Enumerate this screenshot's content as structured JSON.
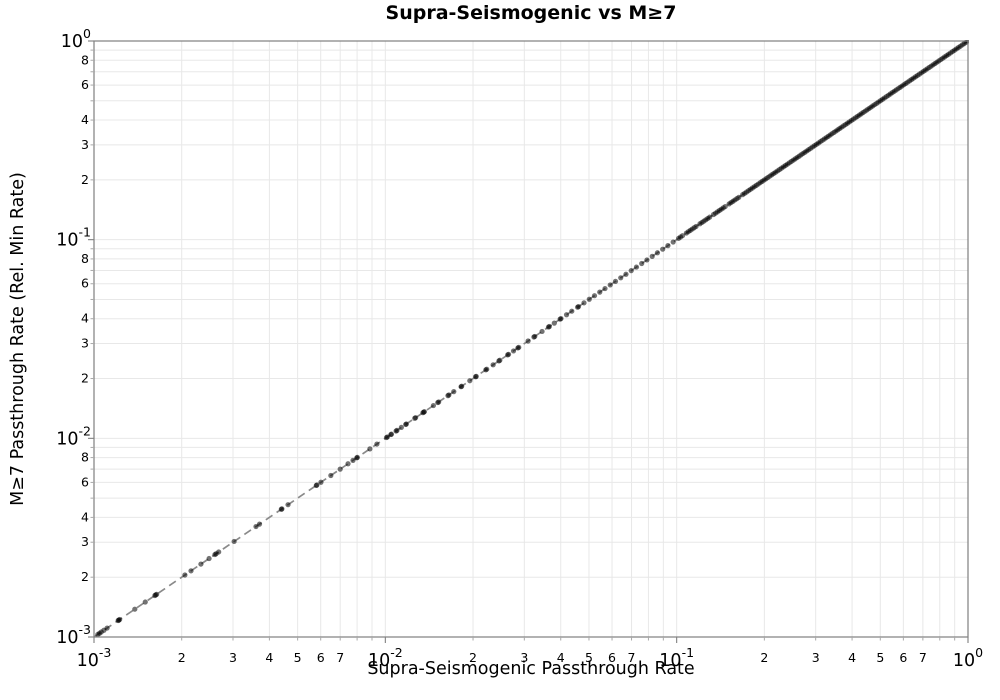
{
  "chart_data": {
    "type": "scatter",
    "title": "Supra-Seismogenic vs M≥7",
    "xlabel": "Supra-Seismogenic Passthrough Rate",
    "ylabel": "M≥7 Passthrough Rate (Rel. Min Rate)",
    "xscale": "log",
    "yscale": "log",
    "xlim": [
      0.001,
      1.0
    ],
    "ylim": [
      0.001,
      1.0
    ],
    "grid": true,
    "legend": "none",
    "x_major_tick_exponents": [
      -3,
      -2,
      -1,
      0
    ],
    "y_major_tick_exponents": [
      0,
      -1,
      -2,
      -3
    ],
    "major_tick_base": "10",
    "x_minor_tick_labels": [
      "2",
      "3",
      "4",
      "5",
      "6",
      "7"
    ],
    "y_minor_tick_labels": [
      "2",
      "3",
      "4",
      "6",
      "8"
    ],
    "reference_line": {
      "equation": "y = x",
      "style": "dashed",
      "color": "#8a8a8a"
    },
    "marker": {
      "shape": "circle",
      "color": "#000000",
      "opacity": 0.55,
      "radius": 2.6
    },
    "colors": {
      "grid": "#e8e8e8",
      "spine": "#7f7f7f",
      "text": "#000000",
      "background": "#ffffff"
    },
    "series": [
      {
        "name": "passthrough-rates",
        "points_note": "Every point lies on the identity line (y = x). Values listed as log10 of the passthrough rate.",
        "log10_rate": [
          -2.987,
          -2.981,
          -2.975,
          -2.966,
          -2.955,
          -2.917,
          -2.915,
          -2.912,
          -2.86,
          -2.824,
          -2.791,
          -2.788,
          -2.785,
          -2.688,
          -2.667,
          -2.633,
          -2.605,
          -2.585,
          -2.581,
          -2.572,
          -2.519,
          -2.444,
          -2.432,
          -2.357,
          -2.355,
          -2.334,
          -2.237,
          -2.235,
          -2.221,
          -2.187,
          -2.155,
          -2.128,
          -2.111,
          -2.098,
          -2.096,
          -2.053,
          -2.029,
          -1.996,
          -1.993,
          -1.981,
          -1.979,
          -1.963,
          -1.96,
          -1.945,
          -1.93,
          -1.928,
          -1.899,
          -1.896,
          -1.871,
          -1.868,
          -1.866,
          -1.835,
          -1.82,
          -1.817,
          -1.785,
          -1.782,
          -1.765,
          -1.74,
          -1.738,
          -1.71,
          -1.69,
          -1.688,
          -1.655,
          -1.652,
          -1.63,
          -1.61,
          -1.607,
          -1.58,
          -1.577,
          -1.56,
          -1.545,
          -1.542,
          -1.51,
          -1.49,
          -1.487,
          -1.462,
          -1.44,
          -1.437,
          -1.42,
          -1.4,
          -1.397,
          -1.378,
          -1.36,
          -1.34,
          -1.337,
          -1.318,
          -1.3,
          -1.282,
          -1.264,
          -1.246,
          -1.228,
          -1.21,
          -1.192,
          -1.174,
          -1.156,
          -1.138,
          -1.12,
          -1.102,
          -1.084,
          -1.066,
          -1.048,
          -1.03,
          -1.012,
          -0.9933,
          -0.9867,
          -0.98,
          -0.9667,
          -0.96,
          -0.9533,
          -0.9467,
          -0.94,
          -0.9333,
          -0.92,
          -0.9133,
          -0.9067,
          -0.9,
          -0.8933,
          -0.8867,
          -0.8733,
          -0.8667,
          -0.86,
          -0.8533,
          -0.8467,
          -0.84,
          -0.8333,
          -0.82,
          -0.8133,
          -0.8067,
          -0.8,
          -0.7933,
          -0.7867,
          -0.7733,
          -0.7667,
          -0.76,
          -0.7533,
          -0.7467,
          -0.74,
          -0.7333,
          -0.7267,
          -0.72,
          -0.7133,
          -0.7067,
          -0.7,
          -0.6933,
          -0.6867,
          -0.68,
          -0.6733,
          -0.6667,
          -0.66,
          -0.6533,
          -0.6467,
          -0.64,
          -0.6333,
          -0.6267,
          -0.62,
          -0.6133,
          -0.6067,
          -0.6,
          -0.5933,
          -0.5867,
          -0.58,
          -0.5733,
          -0.5667,
          -0.56,
          -0.5533,
          -0.5467,
          -0.54,
          -0.5333,
          -0.5267,
          -0.52,
          -0.5133,
          -0.5067,
          -0.5,
          -0.4933,
          -0.4867,
          -0.48,
          -0.4733,
          -0.4667,
          -0.46,
          -0.4533,
          -0.4467,
          -0.44,
          -0.4333,
          -0.4267,
          -0.42,
          -0.4133,
          -0.4067,
          -0.4,
          -0.3933,
          -0.3867,
          -0.38,
          -0.3733,
          -0.3667,
          -0.36,
          -0.3533,
          -0.3467,
          -0.34,
          -0.3333,
          -0.3267,
          -0.32,
          -0.3133,
          -0.3067,
          -0.3,
          -0.2933,
          -0.2867,
          -0.28,
          -0.2733,
          -0.2667,
          -0.26,
          -0.2533,
          -0.2467,
          -0.24,
          -0.2333,
          -0.2267,
          -0.22,
          -0.2133,
          -0.2067,
          -0.2,
          -0.1933,
          -0.1867,
          -0.18,
          -0.1733,
          -0.1667,
          -0.16,
          -0.1533,
          -0.1467,
          -0.14,
          -0.1333,
          -0.1267,
          -0.12,
          -0.1133,
          -0.1067,
          -0.1,
          -0.0933,
          -0.0867,
          -0.08,
          -0.0733,
          -0.0667,
          -0.06,
          -0.0533,
          -0.0467,
          -0.04,
          -0.0333,
          -0.0267,
          -0.02,
          -0.0133,
          -0.0067,
          0.0
        ]
      }
    ]
  }
}
